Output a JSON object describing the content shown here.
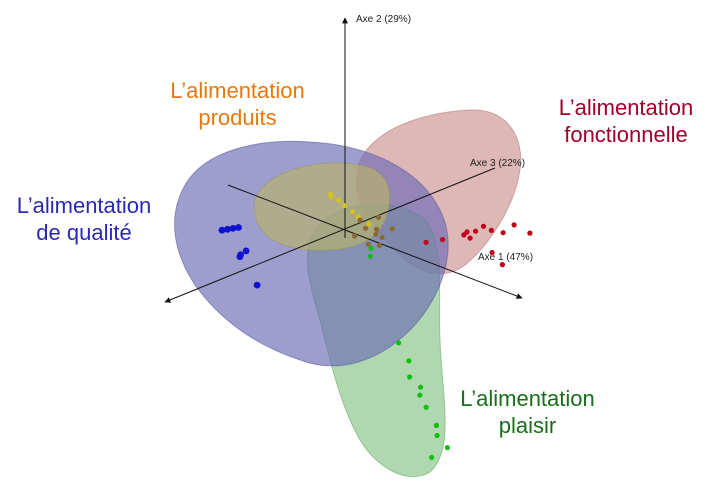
{
  "chart_data": {
    "type": "scatter",
    "dimensions": 3,
    "axes": [
      {
        "name": "axe1",
        "label": "Axe 1 (47%)"
      },
      {
        "name": "axe2",
        "label": "Axe 2 (29%)"
      },
      {
        "name": "axe3",
        "label": "Axe 3 (22%)"
      }
    ],
    "groups": [
      {
        "key": "fonctionnelle",
        "label_line1": "L’alimentation",
        "label_line2": "fonctionnelle",
        "color": "#a0002a",
        "hull_color": "#c98a8a"
      },
      {
        "key": "produits",
        "label_line1": "L’alimentation",
        "label_line2": "produits",
        "color": "#e8780e",
        "hull_color": "#b8b46a"
      },
      {
        "key": "qualite",
        "label_line1": "L’alimentation",
        "label_line2": "de qualité",
        "color": "#2a2ab0",
        "hull_color": "#6c6cb4"
      },
      {
        "key": "plaisir",
        "label_line1": "L’alimentation",
        "label_line2": "plaisir",
        "color": "#17701a",
        "hull_color": "#7fc07f"
      }
    ],
    "point_colors": {
      "fonctionnelle": "#c00018",
      "produits": "#d4c020",
      "qualite": "#1010d0",
      "plaisir": "#10c010",
      "center_mix": "#8a6a30"
    },
    "points": {
      "fonctionnelle": [
        [
          2.9,
          1.0,
          0.2
        ],
        [
          3.1,
          0.9,
          0.3
        ],
        [
          2.7,
          0.8,
          0.2
        ],
        [
          2.4,
          0.7,
          0.3
        ],
        [
          2.2,
          0.65,
          0.2
        ],
        [
          2.0,
          0.55,
          0.25
        ],
        [
          2.1,
          0.5,
          0.2
        ],
        [
          1.9,
          0.45,
          0.3
        ],
        [
          1.6,
          0.3,
          0.2
        ],
        [
          2.5,
          0.4,
          0.2
        ],
        [
          2.6,
          0.2,
          0.3
        ],
        [
          1.3,
          0.15,
          0.2
        ],
        [
          2.3,
          0.75,
          0.25
        ]
      ],
      "produits": [
        [
          -0.7,
          0.15,
          0.5
        ],
        [
          -0.55,
          0.1,
          0.5
        ],
        [
          -0.45,
          0.05,
          0.5
        ],
        [
          -0.3,
          0.0,
          0.5
        ],
        [
          -0.2,
          -0.05,
          0.5
        ],
        [
          0.0,
          -0.1,
          0.5
        ],
        [
          -0.6,
          0.18,
          0.4
        ],
        [
          -0.1,
          0.0,
          0.4
        ]
      ],
      "qualite": [
        [
          -1.8,
          -0.5,
          -0.5
        ],
        [
          -1.7,
          -0.45,
          -0.5
        ],
        [
          -1.6,
          -0.4,
          -0.5
        ],
        [
          -1.5,
          -0.35,
          -0.5
        ],
        [
          -1.1,
          -0.5,
          -0.8
        ],
        [
          -1.2,
          -0.6,
          -0.8
        ],
        [
          -1.3,
          -0.7,
          -0.7
        ],
        [
          -0.9,
          -1.0,
          -0.8
        ]
      ],
      "plaisir": [
        [
          0.8,
          -1.7,
          0.2
        ],
        [
          0.9,
          -2.0,
          0.3
        ],
        [
          1.0,
          -2.2,
          0.2
        ],
        [
          1.2,
          -2.3,
          0.2
        ],
        [
          1.1,
          -2.5,
          0.3
        ],
        [
          1.3,
          -2.6,
          0.2
        ],
        [
          1.4,
          -2.9,
          0.3
        ],
        [
          1.5,
          -3.0,
          0.2
        ],
        [
          1.6,
          -3.2,
          0.3
        ],
        [
          1.4,
          -3.4,
          0.2
        ],
        [
          0.3,
          -0.3,
          0.2
        ],
        [
          0.2,
          -0.5,
          0.3
        ]
      ],
      "center_mix": [
        [
          0.1,
          0.1,
          0.2
        ],
        [
          0.2,
          0.0,
          0.2
        ],
        [
          0.3,
          -0.1,
          0.3
        ],
        [
          0.4,
          0.05,
          0.2
        ],
        [
          0.5,
          -0.05,
          0.2
        ],
        [
          0.6,
          0.1,
          0.3
        ],
        [
          0.0,
          -0.2,
          0.2
        ],
        [
          0.35,
          0.2,
          0.3
        ],
        [
          0.45,
          -0.2,
          0.2
        ],
        [
          0.25,
          -0.25,
          0.2
        ]
      ]
    },
    "legend": "none",
    "grid": false
  }
}
